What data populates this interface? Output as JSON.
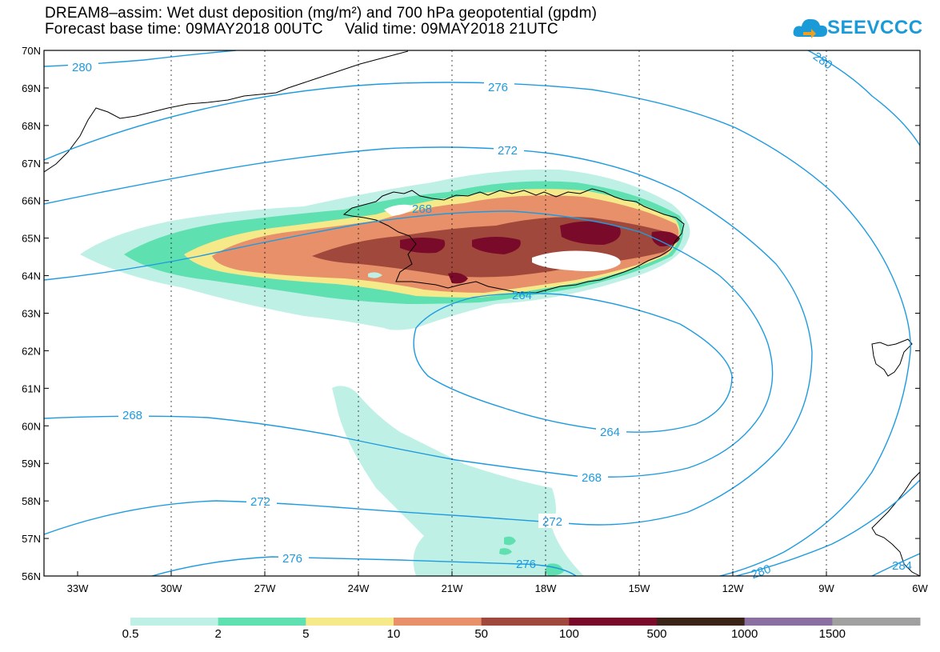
{
  "title_line1": "DREAM8–assim: Wet dust deposition (mg/m²) and 700 hPa geopotential (gpdm)",
  "title_line2": "Forecast base time: 09MAY2018 00UTC     Valid time: 09MAY2018 21UTC",
  "logo_text": "SEEVCCC",
  "lat_ticks": [
    "70N",
    "69N",
    "68N",
    "67N",
    "66N",
    "65N",
    "64N",
    "63N",
    "62N",
    "61N",
    "60N",
    "59N",
    "58N",
    "57N",
    "56N"
  ],
  "lon_ticks": [
    "33W",
    "30W",
    "27W",
    "24W",
    "21W",
    "18W",
    "15W",
    "12W",
    "9W",
    "6W"
  ],
  "colorbar": {
    "colors": [
      "#bff0e6",
      "#5ee0b0",
      "#f5e98a",
      "#e8906a",
      "#a0483c",
      "#7a0a2a",
      "#3a2418",
      "#8a70a0",
      "#a0a0a0"
    ],
    "labels": [
      "0.5",
      "2",
      "5",
      "10",
      "50",
      "100",
      "500",
      "1000",
      "1500"
    ]
  },
  "contour_labels": {
    "c280_nw": "280",
    "c276_n": "276",
    "c272_n": "272",
    "c268_n": "268",
    "c264_n": "264",
    "c264_s": "264",
    "c268_w": "268",
    "c268_s": "268",
    "c272_w": "272",
    "c272_s": "272",
    "c276_w": "276",
    "c276_s": "276",
    "c280_ne": "280",
    "c280_se": "280",
    "c284_se": "284"
  },
  "colors": {
    "contour": "#1e9be0",
    "frame": "#000000"
  }
}
